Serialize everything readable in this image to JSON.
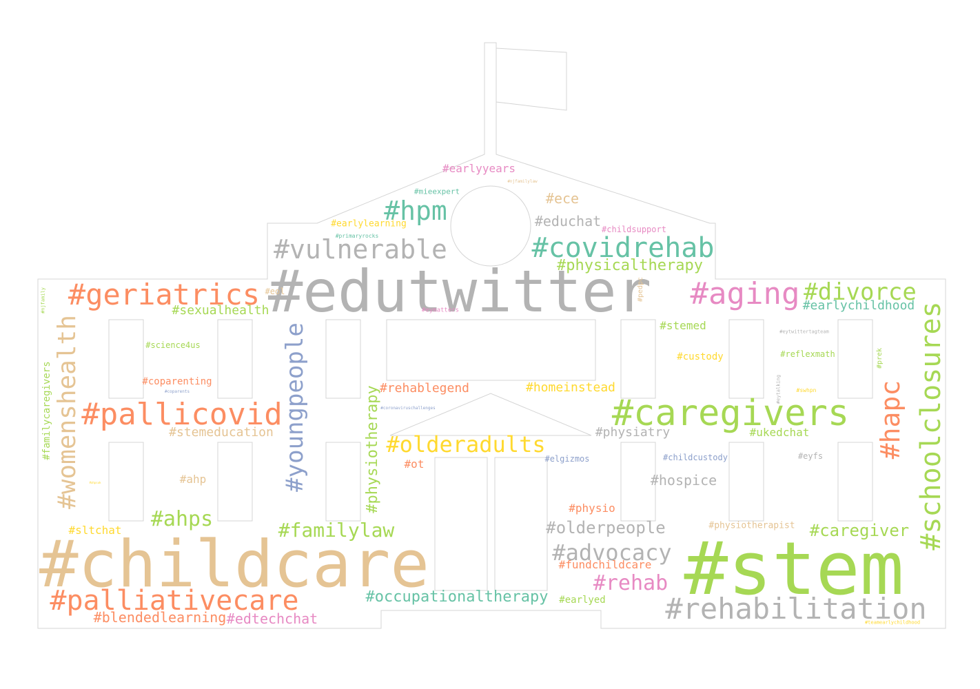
{
  "palette": {
    "gray": "#b3b3b3",
    "tan": "#e5c494",
    "green": "#a6d854",
    "orange": "#fc8d62",
    "teal": "#66c2a5",
    "pink": "#e78ac3",
    "blue": "#8da0cb",
    "yellow": "#ffd92f"
  },
  "words": [
    {
      "text": "#edutwitter",
      "color": "#b3b3b3"
    },
    {
      "text": "#childcare",
      "color": "#e5c494"
    },
    {
      "text": "#stem",
      "color": "#a6d854"
    },
    {
      "text": "#caregivers",
      "color": "#a6d854"
    },
    {
      "text": "#schoolclosures",
      "color": "#a6d854"
    },
    {
      "text": "#rehabilitation",
      "color": "#b3b3b3"
    },
    {
      "text": "#palliativecare",
      "color": "#fc8d62"
    },
    {
      "text": "#pallicovid",
      "color": "#fc8d62"
    },
    {
      "text": "#geriatrics",
      "color": "#fc8d62"
    },
    {
      "text": "#womenshealth",
      "color": "#e5c494"
    },
    {
      "text": "#covidrehab",
      "color": "#66c2a5"
    },
    {
      "text": "#vulnerable",
      "color": "#b3b3b3"
    },
    {
      "text": "#aging",
      "color": "#e78ac3"
    },
    {
      "text": "#divorce",
      "color": "#a6d854"
    },
    {
      "text": "#youngpeople",
      "color": "#8da0cb"
    },
    {
      "text": "#hpm",
      "color": "#66c2a5"
    },
    {
      "text": "#hapc",
      "color": "#fc8d62"
    },
    {
      "text": "#olderadults",
      "color": "#ffd92f"
    },
    {
      "text": "#advocacy",
      "color": "#b3b3b3"
    },
    {
      "text": "#familylaw",
      "color": "#a6d854"
    },
    {
      "text": "#rehab",
      "color": "#e78ac3"
    },
    {
      "text": "#ahps",
      "color": "#a6d854"
    },
    {
      "text": "#physiotherapy",
      "color": "#a6d854"
    },
    {
      "text": "#olderpeople",
      "color": "#b3b3b3"
    },
    {
      "text": "#caregiver",
      "color": "#a6d854"
    },
    {
      "text": "#occupationaltherapy",
      "color": "#66c2a5"
    },
    {
      "text": "#physicaltherapy",
      "color": "#a6d854"
    },
    {
      "text": "#earlychildhood",
      "color": "#66c2a5"
    },
    {
      "text": "#edtechchat",
      "color": "#e78ac3"
    },
    {
      "text": "#blendedlearning",
      "color": "#fc8d62"
    },
    {
      "text": "#stemeducation",
      "color": "#e5c494"
    },
    {
      "text": "#hospice",
      "color": "#b3b3b3"
    },
    {
      "text": "#educhat",
      "color": "#b3b3b3"
    },
    {
      "text": "#ece",
      "color": "#e5c494"
    },
    {
      "text": "#earlyyears",
      "color": "#e78ac3"
    },
    {
      "text": "#sexualhealth",
      "color": "#a6d854"
    },
    {
      "text": "#homeinstead",
      "color": "#ffd92f"
    },
    {
      "text": "#rehablegend",
      "color": "#fc8d62"
    },
    {
      "text": "#physiatry",
      "color": "#b3b3b3"
    },
    {
      "text": "#familycaregivers",
      "color": "#a6d854"
    },
    {
      "text": "#stemed",
      "color": "#a6d854"
    },
    {
      "text": "#ukedchat",
      "color": "#a6d854"
    },
    {
      "text": "#fundchildcare",
      "color": "#fc8d62"
    },
    {
      "text": "#physio",
      "color": "#fc8d62"
    },
    {
      "text": "#custody",
      "color": "#ffd92f"
    },
    {
      "text": "#ahp",
      "color": "#e5c494"
    },
    {
      "text": "#sltchat",
      "color": "#ffd92f"
    },
    {
      "text": "#ot",
      "color": "#fc8d62"
    },
    {
      "text": "#coparenting",
      "color": "#fc8d62"
    },
    {
      "text": "#earlylearning",
      "color": "#ffd92f"
    },
    {
      "text": "#physiotherapist",
      "color": "#e5c494"
    },
    {
      "text": "#earlyed",
      "color": "#a6d854"
    },
    {
      "text": "#childsupport",
      "color": "#e78ac3"
    },
    {
      "text": "#childcustody",
      "color": "#8da0cb"
    },
    {
      "text": "#elgizmos",
      "color": "#8da0cb"
    },
    {
      "text": "#reflexmath",
      "color": "#a6d854"
    },
    {
      "text": "#science4us",
      "color": "#a6d854"
    },
    {
      "text": "#mieexpert",
      "color": "#66c2a5"
    },
    {
      "text": "#eyfs",
      "color": "#b3b3b3"
    },
    {
      "text": "#eol",
      "color": "#e5c494"
    },
    {
      "text": "#pedpc",
      "color": "#e5c494"
    },
    {
      "text": "#prek",
      "color": "#a6d854"
    },
    {
      "text": "#eymatters",
      "color": "#e78ac3"
    },
    {
      "text": "#primaryrocks",
      "color": "#66c2a5"
    },
    {
      "text": "#swhpn",
      "color": "#ffd92f"
    },
    {
      "text": "#njfamily",
      "color": "#a6d854"
    },
    {
      "text": "#eytalking",
      "color": "#b3b3b3"
    },
    {
      "text": "#eytwittertagteam",
      "color": "#b3b3b3"
    },
    {
      "text": "#njfamilylaw",
      "color": "#e5c494"
    },
    {
      "text": "#coparents",
      "color": "#8da0cb"
    },
    {
      "text": "#coronaviruschallenges",
      "color": "#8da0cb"
    },
    {
      "text": "#teamearlychildhood",
      "color": "#ffd92f"
    },
    {
      "text": "#ahpsuk",
      "color": "#ffd92f"
    }
  ]
}
